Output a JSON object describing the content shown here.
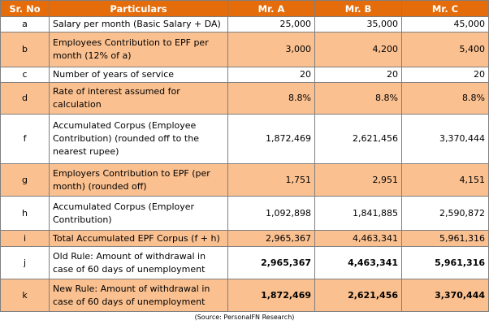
{
  "headers": [
    "Sr. No",
    "Particulars",
    "Mr. A",
    "Mr. B",
    "Mr. C"
  ],
  "rows": [
    {
      "sr": "a",
      "particular": "Salary per month (Basic Salary + DA)",
      "a": "25,000",
      "b": "35,000",
      "c": "45,000"
    },
    {
      "sr": "b",
      "particular": "Employees Contribution to EPF per month (12% of a)",
      "a": "3,000",
      "b": "4,200",
      "c": "5,400"
    },
    {
      "sr": "c",
      "particular": "Number of years of service",
      "a": "20",
      "b": "20",
      "c": "20"
    },
    {
      "sr": "d",
      "particular": "Rate of interest assumed for calculation",
      "a": "8.8%",
      "b": "8.8%",
      "c": "8.8%"
    },
    {
      "sr": "f",
      "particular": "Accumulated Corpus (Employee Contribution) (rounded off to the nearest rupee)",
      "a": "1,872,469",
      "b": "2,621,456",
      "c": "3,370,444"
    },
    {
      "sr": "g",
      "particular": "Employers Contribution to EPF (per month) (rounded off)",
      "a": "1,751",
      "b": "2,951",
      "c": "4,151"
    },
    {
      "sr": "h",
      "particular": "Accumulated Corpus (Employer Contribution)",
      "a": "1,092,898",
      "b": "1,841,885",
      "c": "2,590,872"
    },
    {
      "sr": "i",
      "particular": "Total Accumulated EPF Corpus (f + h)",
      "a": "2,965,367",
      "b": "4,463,341",
      "c": "5,961,316"
    },
    {
      "sr": "j",
      "particular": "Old Rule: Amount of withdrawal in case of 60 days of unemployment",
      "a": "2,965,367",
      "b": "4,463,341",
      "c": "5,961,316"
    },
    {
      "sr": "k",
      "particular": "New Rule: Amount of withdrawal in case of 60 days of unemployment",
      "a": "1,872,469",
      "b": "2,621,456",
      "c": "3,370,444"
    }
  ],
  "source": "(Source: PersonalFN Research)"
}
